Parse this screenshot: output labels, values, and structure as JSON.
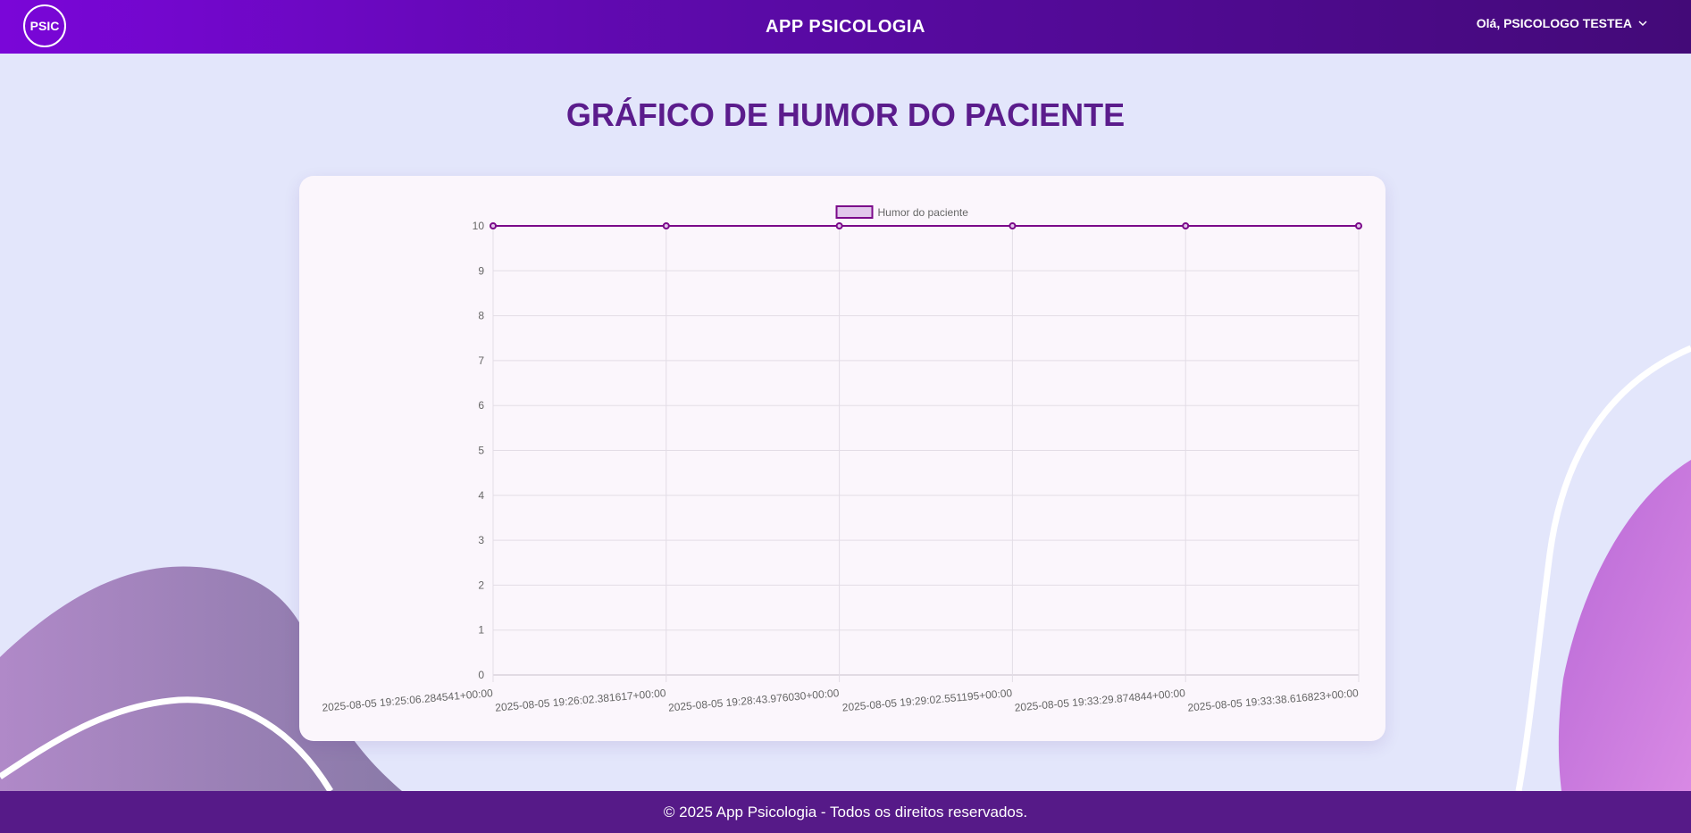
{
  "header": {
    "logo_text": "PSIC",
    "title": "APP PSICOLOGIA",
    "user_greeting": "Olá, PSICOLOGO TESTEA"
  },
  "main": {
    "page_title": "GRÁFICO DE HUMOR DO PACIENTE"
  },
  "chart_data": {
    "type": "line",
    "title": "",
    "xlabel": "",
    "ylabel": "",
    "ylim": [
      0,
      10
    ],
    "yticks": [
      "0",
      "1",
      "2",
      "3",
      "4",
      "5",
      "6",
      "7",
      "8",
      "9",
      "10"
    ],
    "grid": true,
    "legend_position": "top",
    "categories": [
      "2025-08-05 19:25:06.284541+00:00",
      "2025-08-05 19:26:02.381617+00:00",
      "2025-08-05 19:28:43.976030+00:00",
      "2025-08-05 19:29:02.551195+00:00",
      "2025-08-05 19:33:29.874844+00:00",
      "2025-08-05 19:33:38.616823+00:00"
    ],
    "series": [
      {
        "name": "Humor do paciente",
        "values": [
          10,
          10,
          10,
          10,
          10,
          10
        ],
        "color": "#7b0a8a",
        "fill": "#e2c8ec"
      }
    ]
  },
  "footer": {
    "text": "© 2025 App Psicologia - Todos os direitos reservados."
  },
  "colors": {
    "header_start": "#7a06d8",
    "header_end": "#430a78",
    "title": "#5b1c8c",
    "footer": "#561a88",
    "background": "#e3e6fb"
  },
  "icons": {
    "user_menu": "chevron-down-icon"
  }
}
